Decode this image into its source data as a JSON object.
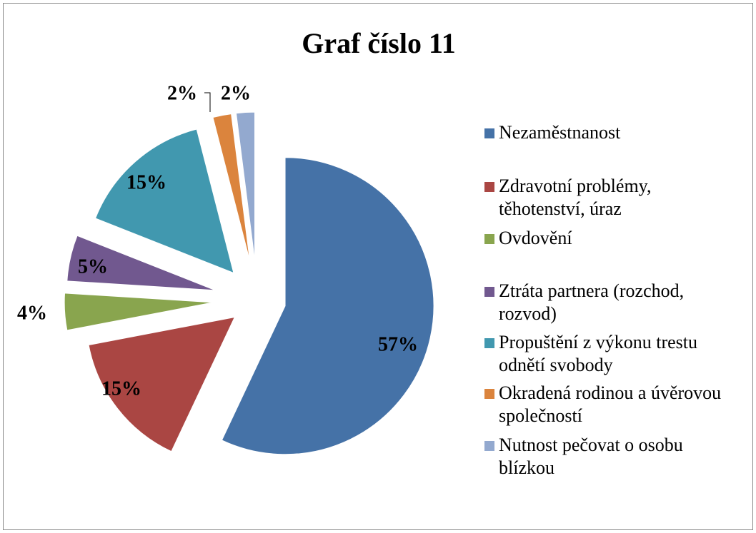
{
  "chart_data": {
    "type": "pie",
    "title": "Graf číslo 11",
    "categories": [
      "Nezaměstnanost",
      "Zdravotní problémy, těhotenství, úraz",
      "Ovdovění",
      "Ztráta partnera (rozchod, rozvod)",
      "Propuštění z výkonu trestu odnětí svobody",
      "Okradená rodinou a úvěrovou společností",
      "Nutnost pečovat o osobu blízkou"
    ],
    "values": [
      57,
      15,
      4,
      5,
      15,
      2,
      2
    ],
    "value_labels": [
      "57%",
      "15%",
      "4%",
      "5%",
      "15%",
      "2%",
      "2%"
    ],
    "colors": [
      "#4572a7",
      "#aa4643",
      "#89a54e",
      "#71588f",
      "#4198af",
      "#db843d",
      "#93a9cf"
    ],
    "legend": "right"
  }
}
